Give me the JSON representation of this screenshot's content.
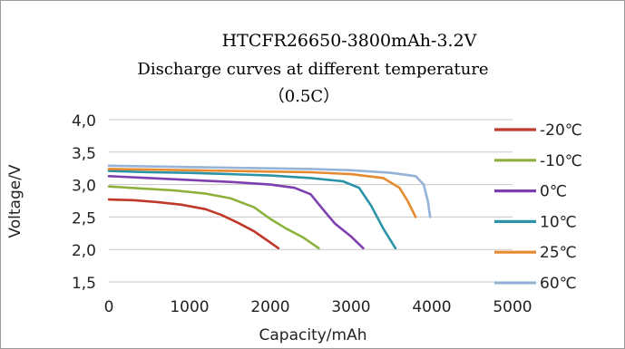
{
  "chart_data": {
    "type": "line",
    "title": "HTCFR26650-3800mAh-3.2V",
    "subtitle": "Discharge curves  at different temperature",
    "subtitle2": "（0.5C）",
    "xlabel": "Capacity/mAh",
    "ylabel": "Voltage/V",
    "xlim": [
      0,
      5000
    ],
    "ylim": [
      1.5,
      4.0
    ],
    "x_ticks": [
      "0",
      "1000",
      "2000",
      "3000",
      "4000",
      "5000"
    ],
    "y_ticks": [
      "1,5",
      "2,0",
      "2,5",
      "3,0",
      "3,5",
      "4,0"
    ],
    "x_tick_values": [
      0,
      1000,
      2000,
      3000,
      4000,
      5000
    ],
    "y_tick_values": [
      1.5,
      2.0,
      2.5,
      3.0,
      3.5,
      4.0
    ],
    "grid": true,
    "legend_position": "right",
    "series": [
      {
        "name": "-20℃",
        "color": "#c0392b",
        "points": [
          [
            0,
            2.77
          ],
          [
            300,
            2.76
          ],
          [
            600,
            2.73
          ],
          [
            900,
            2.69
          ],
          [
            1200,
            2.62
          ],
          [
            1400,
            2.53
          ],
          [
            1600,
            2.41
          ],
          [
            1800,
            2.28
          ],
          [
            1950,
            2.15
          ],
          [
            2100,
            2.02
          ]
        ]
      },
      {
        "name": "-10℃",
        "color": "#8db23c",
        "points": [
          [
            0,
            2.97
          ],
          [
            400,
            2.94
          ],
          [
            800,
            2.91
          ],
          [
            1200,
            2.86
          ],
          [
            1500,
            2.79
          ],
          [
            1800,
            2.65
          ],
          [
            2000,
            2.47
          ],
          [
            2200,
            2.32
          ],
          [
            2400,
            2.19
          ],
          [
            2600,
            2.02
          ]
        ]
      },
      {
        "name": "0℃",
        "color": "#7e3fb0",
        "points": [
          [
            0,
            3.13
          ],
          [
            500,
            3.1
          ],
          [
            1000,
            3.07
          ],
          [
            1500,
            3.04
          ],
          [
            2000,
            3.0
          ],
          [
            2300,
            2.95
          ],
          [
            2500,
            2.85
          ],
          [
            2650,
            2.62
          ],
          [
            2800,
            2.4
          ],
          [
            3000,
            2.2
          ],
          [
            3150,
            2.02
          ]
        ]
      },
      {
        "name": "10℃",
        "color": "#2a93a8",
        "points": [
          [
            0,
            3.21
          ],
          [
            500,
            3.19
          ],
          [
            1000,
            3.18
          ],
          [
            1500,
            3.16
          ],
          [
            2000,
            3.14
          ],
          [
            2500,
            3.1
          ],
          [
            2900,
            3.05
          ],
          [
            3100,
            2.95
          ],
          [
            3250,
            2.67
          ],
          [
            3400,
            2.32
          ],
          [
            3550,
            2.02
          ]
        ]
      },
      {
        "name": "25℃",
        "color": "#e58a2e",
        "points": [
          [
            0,
            3.24
          ],
          [
            500,
            3.23
          ],
          [
            1000,
            3.22
          ],
          [
            1500,
            3.21
          ],
          [
            2000,
            3.2
          ],
          [
            2500,
            3.19
          ],
          [
            3000,
            3.16
          ],
          [
            3400,
            3.1
          ],
          [
            3600,
            2.95
          ],
          [
            3700,
            2.75
          ],
          [
            3800,
            2.5
          ]
        ]
      },
      {
        "name": "60℃",
        "color": "#95b3d7",
        "points": [
          [
            0,
            3.29
          ],
          [
            500,
            3.28
          ],
          [
            1000,
            3.27
          ],
          [
            1500,
            3.26
          ],
          [
            2000,
            3.25
          ],
          [
            2500,
            3.24
          ],
          [
            3000,
            3.22
          ],
          [
            3500,
            3.18
          ],
          [
            3800,
            3.13
          ],
          [
            3900,
            3.0
          ],
          [
            3950,
            2.75
          ],
          [
            3980,
            2.5
          ]
        ]
      }
    ]
  }
}
